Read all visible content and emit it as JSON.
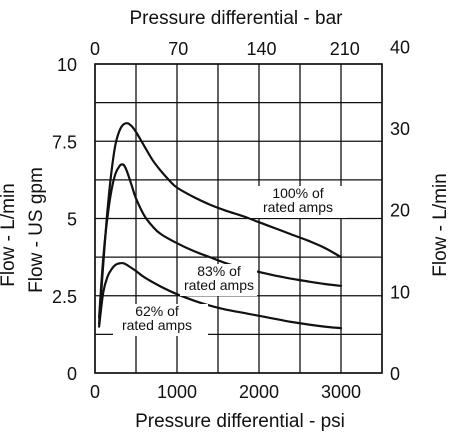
{
  "chart_data": {
    "type": "line",
    "title": "",
    "xlabel": "Pressure differential - psi",
    "x2label": "Pressure differential - bar",
    "ylabel": "Flow - US gpm",
    "y2label": "Flow - L/min",
    "y2label_partial": "Flow - L/min",
    "xlim": [
      0,
      3500
    ],
    "ylim": [
      0,
      10
    ],
    "x2lim": [
      0,
      241.3
    ],
    "y2lim": [
      0,
      37.85
    ],
    "grid": true,
    "x_ticks": [
      {
        "value": 0,
        "label": "0"
      },
      {
        "value": 1000,
        "label": "1000"
      },
      {
        "value": 2000,
        "label": "2000"
      },
      {
        "value": 3000,
        "label": "3000"
      }
    ],
    "x2_ticks": [
      {
        "value": 0,
        "label": "0"
      },
      {
        "value": 70,
        "label": "70"
      },
      {
        "value": 140,
        "label": "140"
      },
      {
        "value": 210,
        "label": "210"
      }
    ],
    "y_ticks": [
      {
        "value": 0,
        "label": "0"
      },
      {
        "value": 2.5,
        "label": "2.5"
      },
      {
        "value": 5,
        "label": "5"
      },
      {
        "value": 7.5,
        "label": "7.5"
      },
      {
        "value": 10,
        "label": "10"
      }
    ],
    "y2_ticks": [
      {
        "value": 0,
        "label": "0"
      },
      {
        "value": 10,
        "label": "10"
      },
      {
        "value": 20,
        "label": "20"
      },
      {
        "value": 30,
        "label": "30"
      },
      {
        "value": 40,
        "label": "40"
      }
    ],
    "x_grid_values": [
      0,
      500,
      1000,
      1500,
      2000,
      2500,
      3000,
      3500
    ],
    "y_grid_values": [
      0,
      1.25,
      2.5,
      3.75,
      5,
      6.25,
      7.5,
      8.75,
      10
    ],
    "series": [
      {
        "name": "100% of rated amps",
        "points": [
          [
            50,
            1.6
          ],
          [
            100,
            3.5
          ],
          [
            150,
            5.2
          ],
          [
            200,
            6.5
          ],
          [
            250,
            7.4
          ],
          [
            300,
            7.85
          ],
          [
            350,
            8.05
          ],
          [
            400,
            8.08
          ],
          [
            450,
            7.98
          ],
          [
            500,
            7.8
          ],
          [
            600,
            7.35
          ],
          [
            700,
            6.9
          ],
          [
            800,
            6.55
          ],
          [
            900,
            6.25
          ],
          [
            1000,
            6.0
          ],
          [
            1200,
            5.7
          ],
          [
            1400,
            5.45
          ],
          [
            1600,
            5.25
          ],
          [
            1800,
            5.08
          ],
          [
            2000,
            4.88
          ],
          [
            2200,
            4.68
          ],
          [
            2400,
            4.48
          ],
          [
            2600,
            4.28
          ],
          [
            2800,
            4.05
          ],
          [
            3000,
            3.75
          ]
        ]
      },
      {
        "name": "83% of rated amps",
        "points": [
          [
            50,
            1.8
          ],
          [
            100,
            3.7
          ],
          [
            150,
            5.0
          ],
          [
            200,
            5.9
          ],
          [
            250,
            6.45
          ],
          [
            300,
            6.7
          ],
          [
            330,
            6.75
          ],
          [
            360,
            6.7
          ],
          [
            400,
            6.45
          ],
          [
            450,
            6.05
          ],
          [
            500,
            5.65
          ],
          [
            600,
            5.1
          ],
          [
            700,
            4.75
          ],
          [
            800,
            4.5
          ],
          [
            1000,
            4.2
          ],
          [
            1200,
            3.95
          ],
          [
            1400,
            3.75
          ],
          [
            1600,
            3.55
          ],
          [
            1800,
            3.4
          ],
          [
            2000,
            3.27
          ],
          [
            2200,
            3.15
          ],
          [
            2400,
            3.05
          ],
          [
            2600,
            2.96
          ],
          [
            2800,
            2.88
          ],
          [
            3000,
            2.82
          ]
        ]
      },
      {
        "name": "62% of rated amps",
        "points": [
          [
            50,
            1.5
          ],
          [
            100,
            2.6
          ],
          [
            150,
            3.1
          ],
          [
            200,
            3.35
          ],
          [
            250,
            3.5
          ],
          [
            300,
            3.55
          ],
          [
            350,
            3.55
          ],
          [
            400,
            3.48
          ],
          [
            500,
            3.3
          ],
          [
            600,
            3.1
          ],
          [
            800,
            2.8
          ],
          [
            1000,
            2.55
          ],
          [
            1200,
            2.35
          ],
          [
            1400,
            2.18
          ],
          [
            1600,
            2.05
          ],
          [
            1800,
            1.95
          ],
          [
            2000,
            1.85
          ],
          [
            2200,
            1.75
          ],
          [
            2400,
            1.65
          ],
          [
            2600,
            1.57
          ],
          [
            2800,
            1.5
          ],
          [
            3000,
            1.45
          ]
        ]
      }
    ],
    "annotations": [
      {
        "lines": [
          "100% of",
          "rated amps"
        ],
        "series": "100% of rated amps"
      },
      {
        "lines": [
          "83% of",
          "rated amps"
        ],
        "series": "83% of rated amps"
      },
      {
        "lines": [
          "62% of",
          "rated amps"
        ],
        "series": "62% of rated amps"
      }
    ]
  }
}
